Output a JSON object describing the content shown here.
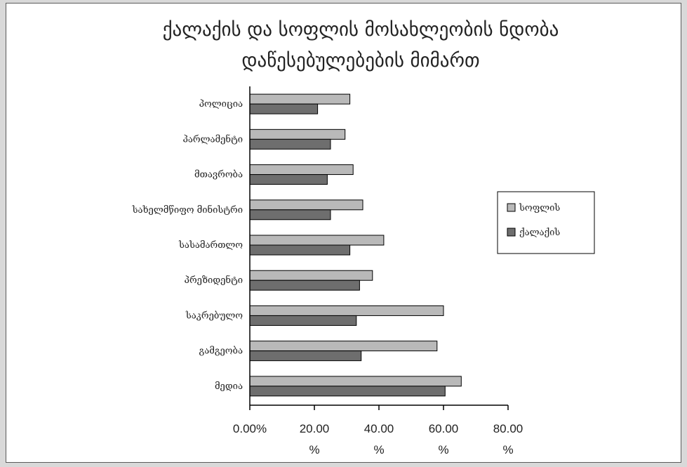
{
  "chart_data": {
    "type": "bar",
    "orientation": "horizontal",
    "title_lines": [
      "ქალაქის და სოფლის მოსახლეობის ნდობა",
      "დაწესებულებების მიმართ"
    ],
    "categories": [
      "პოლიცია",
      "პარლამენტი",
      "მთავრობა",
      "სახელმწიფო მინისტრი",
      "სასამართლო",
      "პრეზიდენტი",
      "საკრებულო",
      "გამგეობა",
      "მედია"
    ],
    "series": [
      {
        "name": "სოფლის",
        "color": "#b9b9b9",
        "values": [
          31,
          29.5,
          32,
          35,
          41.5,
          38,
          60,
          58,
          65.5
        ]
      },
      {
        "name": "ქალაქის",
        "color": "#6e6e6e",
        "values": [
          21,
          25,
          24,
          25,
          31,
          34,
          33,
          34.5,
          60.5
        ]
      }
    ],
    "x_ticks": [
      {
        "line1": "0.00%",
        "line2": ""
      },
      {
        "line1": "20.00",
        "line2": "%"
      },
      {
        "line1": "40.00",
        "line2": "%"
      },
      {
        "line1": "60.00",
        "line2": "%"
      },
      {
        "line1": "80.00",
        "line2": "%"
      }
    ],
    "xlim": [
      0,
      80
    ],
    "legend_position": "right"
  }
}
